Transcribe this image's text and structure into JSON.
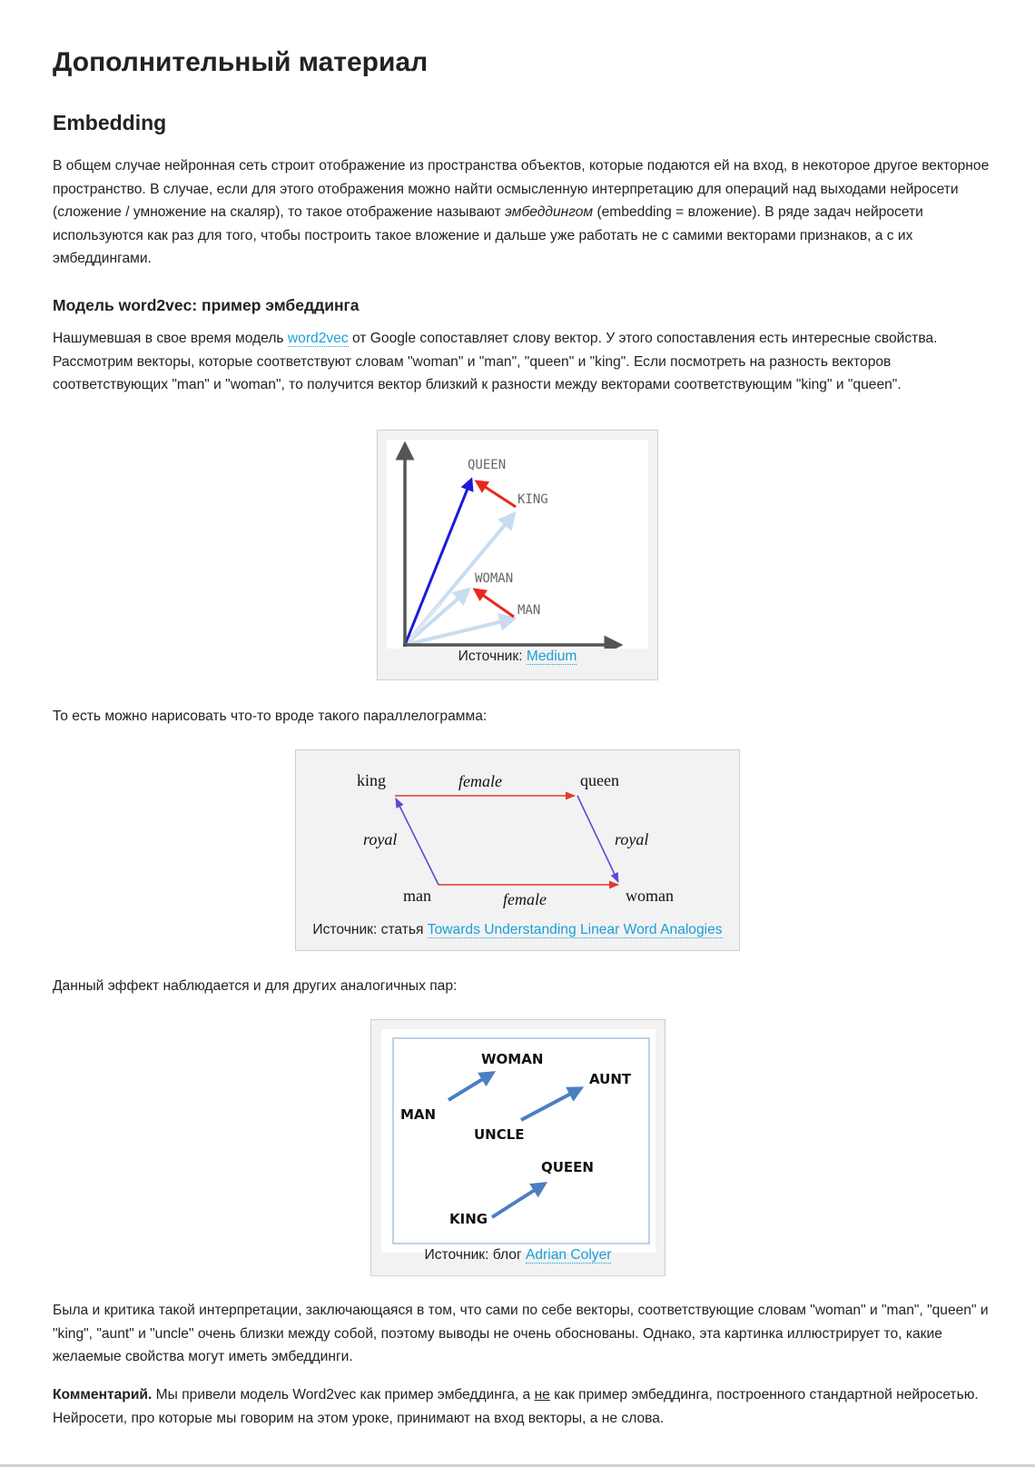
{
  "title": "Дополнительный материал",
  "section": "Embedding",
  "para1": {
    "before": "В общем случае нейронная сеть строит отображение из пространства объектов, которые подаются ей на вход, в некоторое другое векторное пространство. В случае, если для этого отображения можно найти осмысленную интерпретацию для операций над выходами нейросети (сложение / умножение на скаляр), то такое отображение называют ",
    "italic": "эмбеддингом",
    "after": " (embedding = вложение). В ряде задач нейросети используются как раз для того, чтобы построить такое вложение и дальше уже работать не с самими векторами признаков, а с их эмбеддингами."
  },
  "subsection": "Модель word2vec: пример эмбеддинга",
  "para2": {
    "before": "Нашумевшая в свое время модель ",
    "link": "word2vec",
    "after": " от Google сопоставляет слову вектор. У этого сопоставления есть интересные свойства. Рассмотрим векторы, которые соответствуют словам \"woman\" и \"man\",  \"queen\" и \"king\". Если посмотреть на разность векторов соответствующих \"man\" и \"woman\", то получится вектор близкий к разности между векторами соответствующим  \"king\" и \"queen\"."
  },
  "figure1": {
    "labels": {
      "queen": "QUEEN",
      "king": "KING",
      "woman": "WOMAN",
      "man": "MAN"
    },
    "caption_prefix": "Источник: ",
    "caption_link": "Medium"
  },
  "para3": "То есть можно нарисовать что-то вроде такого параллелограмма:",
  "figure2": {
    "labels": {
      "king": "king",
      "queen": "queen",
      "man": "man",
      "woman": "woman",
      "female_top": "female",
      "female_bottom": "female",
      "royal_left": "royal",
      "royal_right": "royal"
    },
    "caption_prefix": "Источник: статья ",
    "caption_link": "Towards Understanding Linear Word Analogies"
  },
  "para4": "Данный эффект наблюдается и для других аналогичных пар:",
  "figure3": {
    "labels": {
      "woman": "WOMAN",
      "aunt": "AUNT",
      "man": "MAN",
      "uncle": "UNCLE",
      "queen": "QUEEN",
      "king": "KING"
    },
    "caption_prefix": "Источник: блог ",
    "caption_link": "Adrian Colyer"
  },
  "para5": "Была и критика такой интерпретации, заключающаяся в том, что сами по себе векторы, соответствующие словам \"woman\" и \"man\", \"queen\" и \"king\", \"aunt\" и \"uncle\" очень близки между собой, поэтому выводы не очень обоснованы. Однако, эта картинка иллюстрирует то, какие желаемые свойства могут иметь эмбеддинги.",
  "para6": {
    "bold": "Комментарий.",
    "before": " Мы привели модель Word2vec как пример эмбеддинга, а ",
    "underline": "не",
    "after": " как пример эмбеддинга, построенного стандартной нейросетью. Нейросети, про которые мы говорим на этом уроке, принимают на вход векторы, а не слова."
  },
  "colors": {
    "link": "#1a9fd8",
    "arrow_blue": "#1a1adc",
    "arrow_red": "#e8281e",
    "arrow_light": "#c9dcf0",
    "arrow_steel": "#4a7fc1"
  }
}
